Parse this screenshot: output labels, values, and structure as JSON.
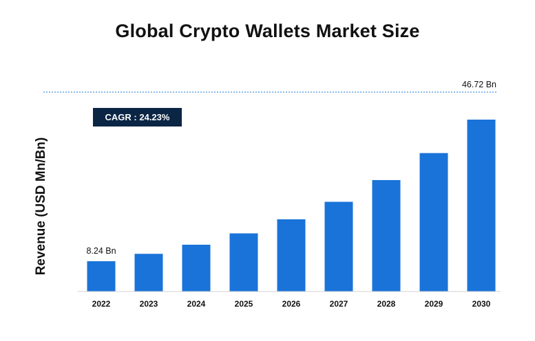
{
  "chart_data": {
    "type": "bar",
    "title": "Global Crypto Wallets Market Size",
    "ylabel": "Revenue (USD Mn/Bn)",
    "xlabel": "",
    "categories": [
      "2022",
      "2023",
      "2024",
      "2025",
      "2026",
      "2027",
      "2028",
      "2029",
      "2030"
    ],
    "values": [
      8.24,
      10.24,
      12.72,
      15.8,
      19.62,
      24.38,
      30.29,
      37.63,
      46.72
    ],
    "ylim": [
      0,
      55
    ],
    "annotations": {
      "first_value_label": "8.24 Bn",
      "last_value_label": "46.72 Bn",
      "cagr": "CAGR : 24.23%"
    },
    "bar_color": "#1a73d9",
    "grid": false,
    "legend": "none"
  }
}
